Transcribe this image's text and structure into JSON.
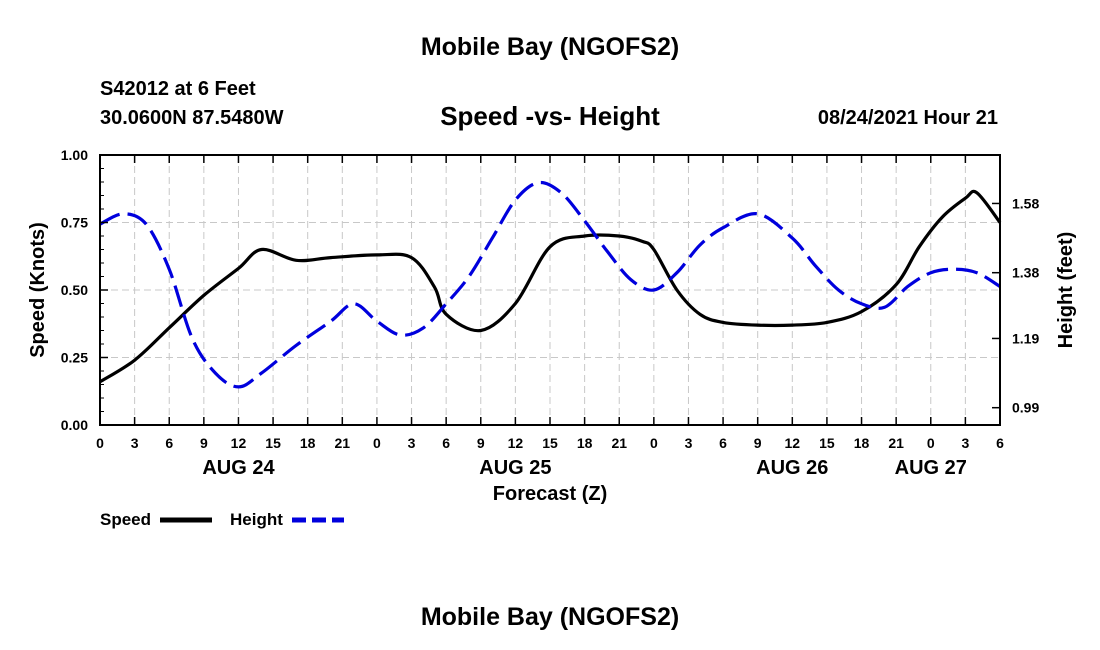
{
  "header": {
    "title_top": "Mobile Bay (NGOFS2)",
    "station": "S42012 at 6 Feet",
    "coords": "30.0600N  87.5480W",
    "datetime": "08/24/2021 Hour 21",
    "title_bottom": "Mobile Bay (NGOFS2)"
  },
  "chart_data": {
    "type": "line",
    "title": "Speed -vs- Height",
    "xlabel": "Forecast (Z)",
    "ylabel": "Speed (Knots)",
    "ylabel_right": "Height (feet)",
    "x_range_hours": [
      0,
      78
    ],
    "ylim": [
      0,
      1
    ],
    "yticks": [
      "0.00",
      "0.25",
      "0.50",
      "0.75",
      "1.00"
    ],
    "ylim_right": [
      0.94,
      1.72
    ],
    "yticks_right": [
      "0.99",
      "1.19",
      "1.38",
      "1.58"
    ],
    "xtick_labels": [
      "0",
      "3",
      "6",
      "9",
      "12",
      "15",
      "18",
      "21",
      "0",
      "3",
      "6",
      "9",
      "12",
      "15",
      "18",
      "21",
      "0",
      "3",
      "6",
      "9",
      "12",
      "15",
      "18",
      "21",
      "0",
      "3",
      "6"
    ],
    "day_labels": [
      {
        "label": "AUG 24",
        "hour": 12
      },
      {
        "label": "AUG 25",
        "hour": 36
      },
      {
        "label": "AUG 26",
        "hour": 60
      },
      {
        "label": "AUG 27",
        "hour": 72
      }
    ],
    "grid": true,
    "legend_position": "bottom-left",
    "series": [
      {
        "name": "Speed",
        "axis": "left",
        "color": "#000000",
        "dash": "solid",
        "x": [
          0,
          3,
          6,
          9,
          12,
          14,
          17,
          20,
          24,
          27,
          29,
          30,
          33,
          36,
          39,
          42,
          45,
          47,
          48,
          50,
          52,
          54,
          57,
          60,
          63,
          66,
          69,
          71,
          73,
          75,
          76,
          78
        ],
        "values": [
          0.16,
          0.24,
          0.36,
          0.48,
          0.58,
          0.65,
          0.61,
          0.62,
          0.63,
          0.62,
          0.51,
          0.41,
          0.35,
          0.45,
          0.66,
          0.7,
          0.7,
          0.68,
          0.65,
          0.5,
          0.41,
          0.38,
          0.37,
          0.37,
          0.38,
          0.42,
          0.52,
          0.66,
          0.77,
          0.84,
          0.86,
          0.75
        ]
      },
      {
        "name": "Height",
        "axis": "right",
        "color": "#0000dd",
        "dash": "dashed",
        "x": [
          0,
          2,
          4,
          6,
          8,
          10,
          12,
          14,
          17,
          20,
          22,
          24,
          26,
          28,
          30,
          32,
          34,
          36,
          38,
          40,
          42,
          44,
          46,
          48,
          50,
          52,
          54,
          57,
          60,
          62,
          64,
          66,
          68,
          70,
          72,
          74,
          76,
          78
        ],
        "values": [
          1.52,
          1.55,
          1.52,
          1.39,
          1.19,
          1.09,
          1.05,
          1.09,
          1.17,
          1.24,
          1.29,
          1.24,
          1.2,
          1.22,
          1.29,
          1.37,
          1.48,
          1.59,
          1.64,
          1.61,
          1.53,
          1.44,
          1.36,
          1.33,
          1.38,
          1.46,
          1.51,
          1.55,
          1.48,
          1.4,
          1.33,
          1.29,
          1.28,
          1.34,
          1.38,
          1.39,
          1.38,
          1.34
        ]
      }
    ]
  }
}
